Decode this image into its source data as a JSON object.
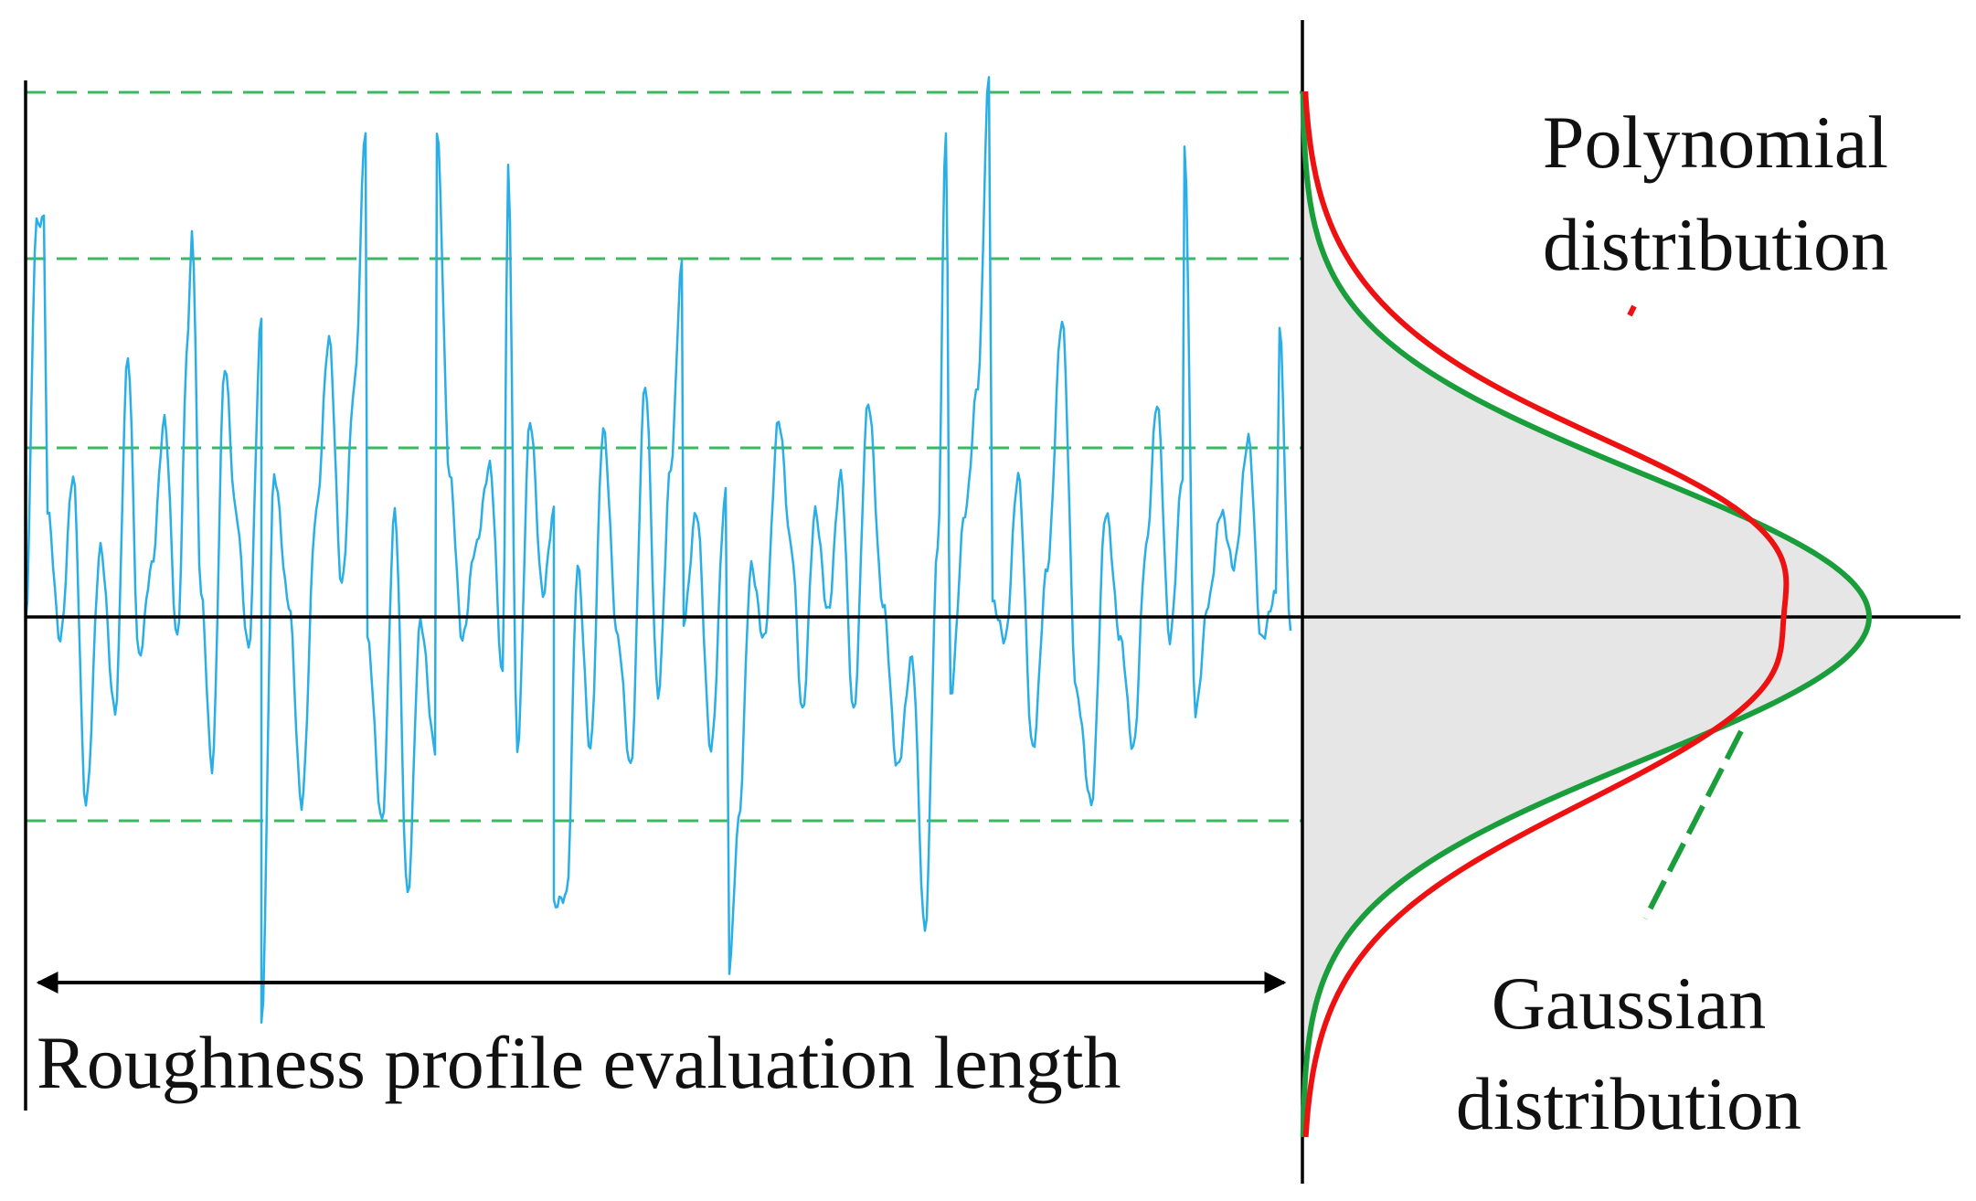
{
  "labels": {
    "evaluation_length": "Roughness profile evaluation length",
    "polynomial_line1": "Polynomial",
    "polynomial_line2": "distribution",
    "gaussian_line1": "Gaussian",
    "gaussian_line2": "distribution"
  },
  "colors": {
    "profile": "#2aaee6",
    "guide": "#3cb860",
    "polynomial": "#ee1111",
    "gaussian": "#1a9e3c",
    "fill": "#e6e6e6",
    "axis": "#000000"
  }
}
